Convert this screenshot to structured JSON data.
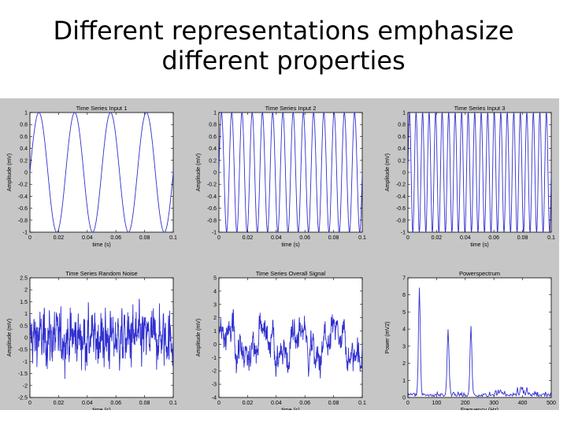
{
  "slide": {
    "title_line1": "Different representations emphasize",
    "title_line2": "different properties"
  },
  "chart_data": [
    {
      "type": "line",
      "title": "Time Series Input 1",
      "xlabel": "time (s)",
      "ylabel": "Amplitude (mV)",
      "xlim": [
        0,
        0.1
      ],
      "ylim": [
        -1,
        1
      ],
      "xticks": [
        "0",
        "0.02",
        "0.04",
        "0.06",
        "0.08",
        "0.1"
      ],
      "yticks": [
        "-1",
        "-0.8",
        "-0.6",
        "-0.4",
        "-0.2",
        "0",
        "0.2",
        "0.4",
        "0.6",
        "0.8",
        "1"
      ],
      "signal": "sine",
      "frequency_hz": 40,
      "amplitude": 1,
      "series_color": "#3030d0"
    },
    {
      "type": "line",
      "title": "Time Series Input 2",
      "xlabel": "time (s)",
      "ylabel": "Amplitude (mV)",
      "xlim": [
        0,
        0.1
      ],
      "ylim": [
        -1,
        1
      ],
      "xticks": [
        "0",
        "0.02",
        "0.04",
        "0.06",
        "0.08",
        "0.1"
      ],
      "yticks": [
        "-1",
        "-0.8",
        "-0.6",
        "-0.4",
        "-0.2",
        "0",
        "0.2",
        "0.4",
        "0.6",
        "0.8",
        "1"
      ],
      "signal": "sine",
      "frequency_hz": 140,
      "amplitude": 1,
      "series_color": "#3030d0"
    },
    {
      "type": "line",
      "title": "Time Series Input 3",
      "xlabel": "time (s)",
      "ylabel": "Amplitude (mV)",
      "xlim": [
        0,
        0.1
      ],
      "ylim": [
        -1,
        1
      ],
      "xticks": [
        "0",
        "0.02",
        "0.04",
        "0.06",
        "0.08",
        "0.1"
      ],
      "yticks": [
        "-1",
        "-0.8",
        "-0.6",
        "-0.4",
        "-0.2",
        "0",
        "0.2",
        "0.4",
        "0.6",
        "0.8",
        "1"
      ],
      "signal": "sine",
      "frequency_hz": 220,
      "amplitude": 1,
      "series_color": "#3030d0"
    },
    {
      "type": "line",
      "title": "Time Series Random Noise",
      "xlabel": "time (s)",
      "ylabel": "Amplitude (mV)",
      "xlim": [
        0,
        0.1
      ],
      "ylim": [
        -2.5,
        2.5
      ],
      "xticks": [
        "0",
        "0.02",
        "0.04",
        "0.06",
        "0.08",
        "0.1"
      ],
      "yticks": [
        "-2.5",
        "-2",
        "-1.5",
        "-1",
        "-0.5",
        "0",
        "0.5",
        "1",
        "1.5",
        "2",
        "2.5"
      ],
      "signal": "noise",
      "series_color": "#3030d0"
    },
    {
      "type": "line",
      "title": "Time Series Overall Signal",
      "xlabel": "time (s)",
      "ylabel": "Amplitude (mV)",
      "xlim": [
        0,
        0.1
      ],
      "ylim": [
        -4,
        5
      ],
      "xticks": [
        "0",
        "0.02",
        "0.04",
        "0.06",
        "0.08",
        "0.1"
      ],
      "yticks": [
        "-4",
        "-3",
        "-2",
        "-1",
        "0",
        "1",
        "2",
        "3",
        "4",
        "5"
      ],
      "signal": "sum",
      "series_color": "#3030d0"
    },
    {
      "type": "line",
      "title": "Powerspectrum",
      "xlabel": "Frequency (Hz)",
      "ylabel": "Power (mV2)",
      "xlim": [
        0,
        500
      ],
      "ylim": [
        0,
        7
      ],
      "xticks": [
        "0",
        "100",
        "200",
        "300",
        "400",
        "500"
      ],
      "yticks": [
        "0",
        "1",
        "2",
        "3",
        "4",
        "5",
        "6",
        "7"
      ],
      "signal": "spectrum",
      "peaks": [
        {
          "frequency": 40,
          "power": 6.2
        },
        {
          "frequency": 140,
          "power": 3.9
        },
        {
          "frequency": 220,
          "power": 4.0
        }
      ],
      "series_color": "#3030d0"
    }
  ]
}
